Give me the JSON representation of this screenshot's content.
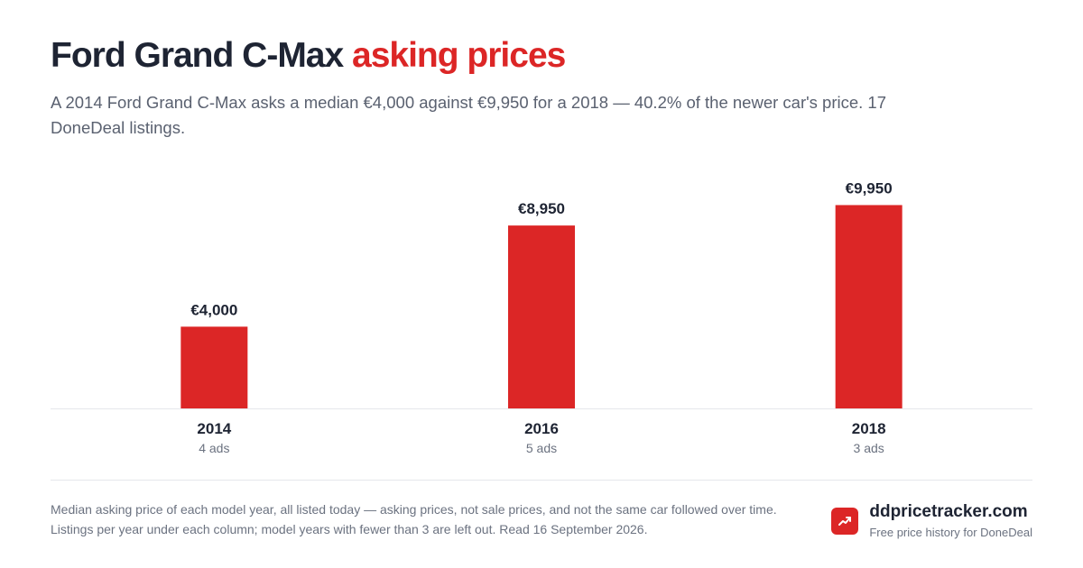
{
  "header": {
    "title_main": "Ford Grand C-Max",
    "title_accent": "asking prices",
    "subtitle": "A 2014 Ford Grand C-Max asks a median €4,000 against €9,950 for a 2018 — 40.2% of the newer car's price. 17 DoneDeal listings."
  },
  "chart_data": {
    "type": "bar",
    "categories": [
      "2014",
      "2016",
      "2018"
    ],
    "values": [
      4000,
      8950,
      9950
    ],
    "value_labels": [
      "€4,000",
      "€8,950",
      "€9,950"
    ],
    "sublabels": [
      "4 ads",
      "5 ads",
      "3 ads"
    ],
    "ylim": [
      0,
      10500
    ],
    "grid": false,
    "legend": "none",
    "bar_color": "#dc2626"
  },
  "footer": {
    "note": "Median asking price of each model year, all listed today — asking prices, not sale prices, and not the same car followed over time. Listings per year under each column; model years with fewer than 3 are left out. Read 16 September 2026.",
    "brand_name": "ddpricetracker.com",
    "brand_tagline": "Free price history for DoneDeal",
    "brand_icon": "trending-up-icon"
  },
  "colors": {
    "accent": "#dc2626",
    "text_dark": "#1e2433",
    "text_muted": "#6b7280"
  }
}
